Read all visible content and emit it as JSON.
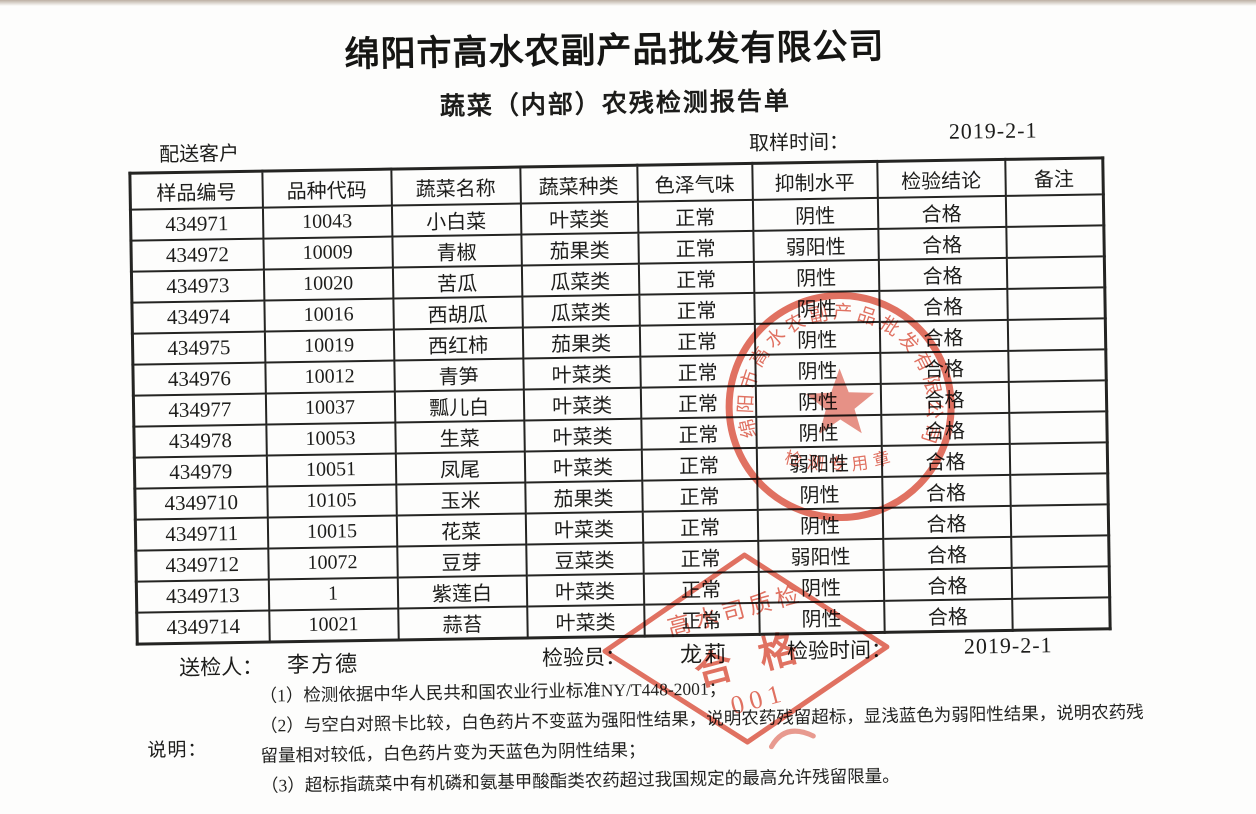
{
  "document": {
    "company": "绵阳市高水农副产品批发有限公司",
    "title": "蔬菜（内部）农残检测报告单",
    "delivery_customer_label": "配送客户",
    "sampling_time_label": "取样时间：",
    "sampling_time_value": "2019-2-1"
  },
  "table": {
    "headers": [
      "样品编号",
      "品种代码",
      "蔬菜名称",
      "蔬菜种类",
      "色泽气味",
      "抑制水平",
      "检验结论",
      "备注"
    ],
    "rows": [
      [
        "434971",
        "10043",
        "小白菜",
        "叶菜类",
        "正常",
        "阴性",
        "合格",
        ""
      ],
      [
        "434972",
        "10009",
        "青椒",
        "茄果类",
        "正常",
        "弱阳性",
        "合格",
        ""
      ],
      [
        "434973",
        "10020",
        "苦瓜",
        "瓜菜类",
        "正常",
        "阴性",
        "合格",
        ""
      ],
      [
        "434974",
        "10016",
        "西胡瓜",
        "瓜菜类",
        "正常",
        "阴性",
        "合格",
        ""
      ],
      [
        "434975",
        "10019",
        "西红柿",
        "茄果类",
        "正常",
        "阴性",
        "合格",
        ""
      ],
      [
        "434976",
        "10012",
        "青笋",
        "叶菜类",
        "正常",
        "阴性",
        "合格",
        ""
      ],
      [
        "434977",
        "10037",
        "瓢儿白",
        "叶菜类",
        "正常",
        "阴性",
        "合格",
        ""
      ],
      [
        "434978",
        "10053",
        "生菜",
        "叶菜类",
        "正常",
        "阴性",
        "合格",
        ""
      ],
      [
        "434979",
        "10051",
        "凤尾",
        "叶菜类",
        "正常",
        "弱阳性",
        "合格",
        ""
      ],
      [
        "4349710",
        "10105",
        "玉米",
        "茄果类",
        "正常",
        "阴性",
        "合格",
        ""
      ],
      [
        "4349711",
        "10015",
        "花菜",
        "叶菜类",
        "正常",
        "阴性",
        "合格",
        ""
      ],
      [
        "4349712",
        "10072",
        "豆芽",
        "豆菜类",
        "正常",
        "弱阳性",
        "合格",
        ""
      ],
      [
        "4349713",
        "1",
        "紫莲白",
        "叶菜类",
        "正常",
        "阴性",
        "合格",
        ""
      ],
      [
        "4349714",
        "10021",
        "蒜苔",
        "叶菜类",
        "正常",
        "阴性",
        "合格",
        ""
      ]
    ]
  },
  "footer": {
    "submitter_label": "送检人：",
    "submitter_value": "李方德",
    "inspector_label": "检验员：",
    "inspector_value": "龙莉",
    "inspection_time_label": "检验时间：",
    "inspection_time_value": "2019-2-1",
    "notes_label": "说明：",
    "notes": [
      "（1）检测依据中华人民共和国农业行业标准NY/T448-2001；",
      "（2）与空白对照卡比较，白色药片不变蓝为强阳性结果，说明农药残留超标，显浅蓝色为弱阳性结果，说明农药残留量相对较低，白色药片变为天蓝色为阴性结果；",
      "（3）超标指蔬菜中有机磷和氨基甲酸酯类农药超过我国规定的最高允许残留限量。"
    ]
  },
  "stamps": {
    "round": {
      "arc_text": "绵阳市高水农副产品批发有限公司",
      "bottom_text": "检测专用章",
      "color": "#d5402c"
    },
    "diamond": {
      "line1": "高水司质检",
      "line2": "合格",
      "line3": "001",
      "color": "#d5402c"
    }
  },
  "colors": {
    "stamp_red": "#d5402c",
    "ink_black": "#1d1d1b"
  }
}
